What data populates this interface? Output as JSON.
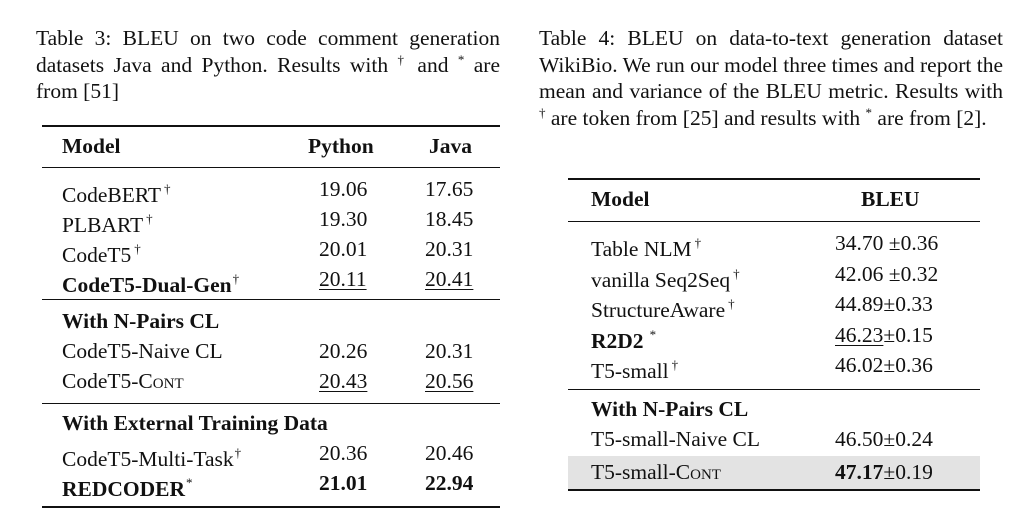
{
  "table3": {
    "caption": "Table 3: BLEU on two code comment generation datasets Java and Python. Results with † and * are from [51]",
    "caption_parts": {
      "pre": "Table 3: BLEU on two code comment generation datasets Java and Python. Results with ",
      "sym1": "†",
      "mid": " and ",
      "sym2": "*",
      "post": " are from [51]"
    },
    "headers": {
      "model": "Model",
      "python": "Python",
      "java": "Java"
    },
    "rows": [
      {
        "model": "CodeBERT",
        "mark": "†",
        "python": "19.06",
        "java": "17.65"
      },
      {
        "model": "PLBART",
        "mark": "†",
        "python": "19.30",
        "java": "18.45"
      },
      {
        "model": "CodeT5",
        "mark": "†",
        "python": "20.01",
        "java": "20.31"
      },
      {
        "model": "CodeT5-Dual-Gen",
        "mark": "†",
        "python": "20.11",
        "java": "20.41"
      }
    ],
    "section2": {
      "title": "With N-Pairs CL",
      "rows": [
        {
          "model": "CodeT5-Naive CL",
          "python": "20.26",
          "java": "20.31"
        },
        {
          "model_pre": "CodeT5-C",
          "model_sc": "ont",
          "python": "20.43",
          "java": "20.56"
        }
      ]
    },
    "section3": {
      "title": "With External Training Data",
      "rows": [
        {
          "model": "CodeT5-Multi-Task",
          "mark": "†",
          "python": "20.36",
          "java": "20.46"
        },
        {
          "model": "REDCODER",
          "mark": "*",
          "python": "21.01",
          "java": "22.94"
        }
      ]
    }
  },
  "table4": {
    "caption": "Table 4: BLEU on data-to-text generation dataset WikiBio. We run our model three times and report the mean and variance of the BLEU metric. Results with † are token from [25] and results with * are from [2].",
    "caption_parts": {
      "pre": "Table 4: BLEU on data-to-text generation dataset WikiBio. We run our model three times and report the mean and variance of the BLEU metric. Results with ",
      "sym1": "†",
      "mid": " are token from [25] and results with ",
      "sym2": "*",
      "post": " are from [2]."
    },
    "headers": {
      "model": "Model",
      "bleu": "BLEU"
    },
    "pm": "±",
    "rows": [
      {
        "model": "Table NLM",
        "mark": "†",
        "mean": "34.70",
        "var": "0.36"
      },
      {
        "model": "vanilla Seq2Seq",
        "mark": "†",
        "mean": "42.06",
        "var": "0.32"
      },
      {
        "model": "StructureAware",
        "mark": "†",
        "mean": "44.89",
        "var": "0.33"
      },
      {
        "model": "R2D2",
        "mark": "*",
        "mean": "46.23",
        "var": "0.15"
      },
      {
        "model": "T5-small",
        "mark": "†",
        "mean": "46.02",
        "var": "0.36"
      }
    ],
    "section2": {
      "title": "With N-Pairs CL",
      "rows": [
        {
          "model": "T5-small-Naive CL",
          "mean": "46.50",
          "var": "0.24"
        },
        {
          "model_pre": "T5-small-C",
          "model_sc": "ont",
          "mean": "47.17",
          "var": "0.19"
        }
      ]
    },
    "highlight_color": "#e3e3e3"
  }
}
